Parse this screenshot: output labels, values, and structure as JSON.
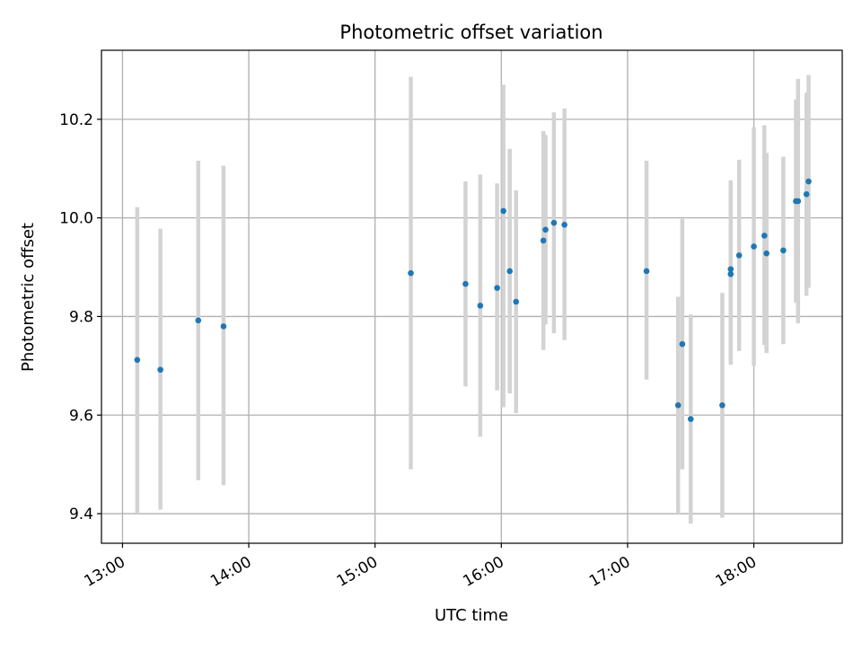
{
  "chart_data": {
    "type": "scatter",
    "title": "Photometric offset variation",
    "xlabel": "UTC time",
    "ylabel": "Photometric offset",
    "x_tick_labels": [
      "13:00",
      "14:00",
      "15:00",
      "16:00",
      "17:00",
      "18:00"
    ],
    "y_tick_labels": [
      "9.4",
      "9.6",
      "9.8",
      "10.0",
      "10.2"
    ],
    "xlim": [
      "12:50",
      "18:42"
    ],
    "ylim": [
      9.34,
      10.34
    ],
    "grid": true,
    "marker_color": "#1f77b4",
    "errorbar_color": "#d3d3d3",
    "series": [
      {
        "points": [
          {
            "x": "13:07",
            "y": 9.712,
            "err_low": 9.402,
            "err_high": 10.022
          },
          {
            "x": "13:18",
            "y": 9.692,
            "err_low": 9.408,
            "err_high": 9.978
          },
          {
            "x": "13:36",
            "y": 9.792,
            "err_low": 9.468,
            "err_high": 10.116
          },
          {
            "x": "13:48",
            "y": 9.78,
            "err_low": 9.458,
            "err_high": 10.106
          },
          {
            "x": "15:17",
            "y": 9.888,
            "err_low": 9.49,
            "err_high": 10.286
          },
          {
            "x": "15:43",
            "y": 9.866,
            "err_low": 9.658,
            "err_high": 10.074
          },
          {
            "x": "15:50",
            "y": 9.822,
            "err_low": 9.556,
            "err_high": 10.088
          },
          {
            "x": "15:58",
            "y": 9.858,
            "err_low": 9.65,
            "err_high": 10.07
          },
          {
            "x": "16:01",
            "y": 10.014,
            "err_low": 9.616,
            "err_high": 10.27
          },
          {
            "x": "16:04",
            "y": 9.892,
            "err_low": 9.644,
            "err_high": 10.14
          },
          {
            "x": "16:07",
            "y": 9.83,
            "err_low": 9.604,
            "err_high": 10.056
          },
          {
            "x": "16:20",
            "y": 9.954,
            "err_low": 9.732,
            "err_high": 10.176
          },
          {
            "x": "16:21",
            "y": 9.976,
            "err_low": 9.784,
            "err_high": 10.168
          },
          {
            "x": "16:25",
            "y": 9.99,
            "err_low": 9.766,
            "err_high": 10.214
          },
          {
            "x": "16:30",
            "y": 9.986,
            "err_low": 9.752,
            "err_high": 10.222
          },
          {
            "x": "17:09",
            "y": 9.892,
            "err_low": 9.672,
            "err_high": 10.116
          },
          {
            "x": "17:24",
            "y": 9.62,
            "err_low": 9.4,
            "err_high": 9.84
          },
          {
            "x": "17:26",
            "y": 9.744,
            "err_low": 9.49,
            "err_high": 9.998
          },
          {
            "x": "17:30",
            "y": 9.592,
            "err_low": 9.38,
            "err_high": 9.804
          },
          {
            "x": "17:45",
            "y": 9.62,
            "err_low": 9.392,
            "err_high": 9.848
          },
          {
            "x": "17:49",
            "y": 9.886,
            "err_low": 9.712,
            "err_high": 10.06
          },
          {
            "x": "17:49",
            "y": 9.896,
            "err_low": 9.702,
            "err_high": 10.076
          },
          {
            "x": "17:53",
            "y": 9.924,
            "err_low": 9.73,
            "err_high": 10.118
          },
          {
            "x": "18:00",
            "y": 9.942,
            "err_low": 9.7,
            "err_high": 10.184
          },
          {
            "x": "18:05",
            "y": 9.964,
            "err_low": 9.742,
            "err_high": 10.188
          },
          {
            "x": "18:06",
            "y": 9.928,
            "err_low": 9.726,
            "err_high": 10.132
          },
          {
            "x": "18:14",
            "y": 9.934,
            "err_low": 9.744,
            "err_high": 10.124
          },
          {
            "x": "18:20",
            "y": 10.034,
            "err_low": 9.828,
            "err_high": 10.24
          },
          {
            "x": "18:21",
            "y": 10.034,
            "err_low": 9.786,
            "err_high": 10.282
          },
          {
            "x": "18:25",
            "y": 10.048,
            "err_low": 9.842,
            "err_high": 10.254
          },
          {
            "x": "18:26",
            "y": 10.074,
            "err_low": 9.858,
            "err_high": 10.29
          }
        ]
      }
    ]
  }
}
